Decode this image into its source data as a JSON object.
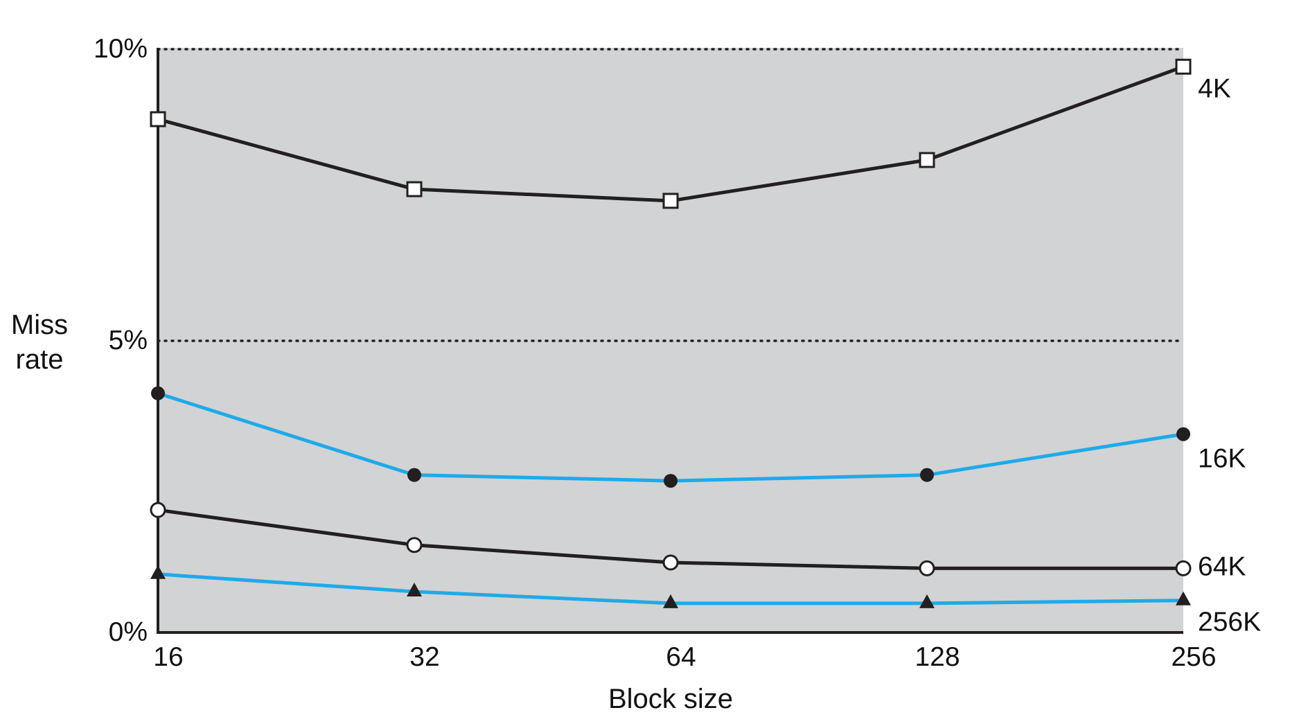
{
  "chart_data": {
    "type": "line",
    "xlabel": "Block size",
    "ylabel": [
      "Miss",
      "rate"
    ],
    "categories": [
      "16",
      "32",
      "64",
      "128",
      "256"
    ],
    "y_ticks": [
      "0%",
      "5%",
      "10%"
    ],
    "ylim": [
      0,
      10
    ],
    "y_max_display": 10.3,
    "grid": {
      "dotted_horizontal_at": [
        5,
        10
      ]
    },
    "plot_background": "#d1d3d4",
    "series": [
      {
        "name": "4K",
        "values": [
          8.8,
          7.6,
          7.4,
          8.1,
          9.7
        ],
        "color": "#231f20",
        "marker": "open-square"
      },
      {
        "name": "16K",
        "values": [
          4.1,
          2.7,
          2.6,
          2.7,
          3.4
        ],
        "color": "#1eaaea",
        "marker": "filled-circle"
      },
      {
        "name": "64K",
        "values": [
          2.1,
          1.5,
          1.2,
          1.1,
          1.1
        ],
        "color": "#231f20",
        "marker": "open-circle"
      },
      {
        "name": "256K",
        "values": [
          1.0,
          0.7,
          0.5,
          0.5,
          0.55
        ],
        "color": "#1eaaea",
        "marker": "filled-triangle"
      }
    ]
  }
}
